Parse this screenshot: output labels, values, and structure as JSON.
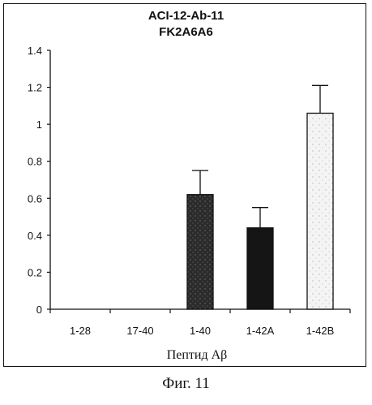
{
  "chart_data": {
    "type": "bar",
    "title": "ACI-12-Ab-11",
    "subtitle": "FK2A6A6",
    "xlabel": "Пептид Aβ",
    "ylabel": "",
    "categories": [
      "1-28",
      "17-40",
      "1-40",
      "1-42A",
      "1-42B"
    ],
    "values": [
      0,
      0,
      0.62,
      0.44,
      1.06
    ],
    "error": [
      0,
      0,
      0.13,
      0.11,
      0.15
    ],
    "ylim": [
      0,
      1.4
    ],
    "yticks": [
      "0",
      "0.2",
      "0.4",
      "0.6",
      "0.8",
      "1",
      "1.2",
      "1.4"
    ],
    "grid": false,
    "bar_styles": [
      "none",
      "none",
      "dark-stipple",
      "black",
      "light-stipple"
    ]
  },
  "caption": "Фиг. 11"
}
